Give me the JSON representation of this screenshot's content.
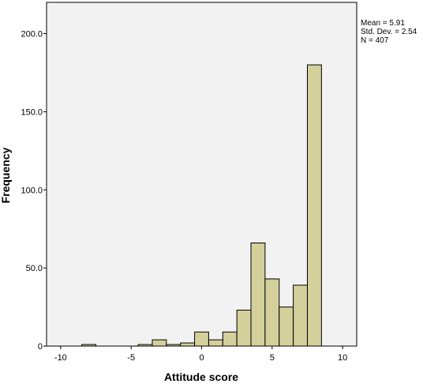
{
  "chart_data": {
    "type": "bar",
    "subtype": "histogram",
    "xlabel": "Attitude score",
    "ylabel": "Frequency",
    "xlim": [
      -11,
      11
    ],
    "ylim": [
      0,
      220
    ],
    "bin_width": 1,
    "x_ticks": [
      -10,
      -5,
      0,
      5,
      10
    ],
    "x_tick_labels": [
      "-10",
      "-5",
      "0",
      "5",
      "10"
    ],
    "y_ticks": [
      0,
      50,
      100,
      150,
      200
    ],
    "y_tick_labels": [
      "0",
      "50.0",
      "100.0",
      "150.0",
      "200.0"
    ],
    "bins": [
      {
        "start": -8.5,
        "end": -7.5,
        "count": 1
      },
      {
        "start": -4.5,
        "end": -3.5,
        "count": 1
      },
      {
        "start": -3.5,
        "end": -2.5,
        "count": 4
      },
      {
        "start": -2.5,
        "end": -1.5,
        "count": 1
      },
      {
        "start": -1.5,
        "end": -0.5,
        "count": 2
      },
      {
        "start": -0.5,
        "end": 0.5,
        "count": 9
      },
      {
        "start": 0.5,
        "end": 1.5,
        "count": 4
      },
      {
        "start": 1.5,
        "end": 2.5,
        "count": 9
      },
      {
        "start": 2.5,
        "end": 3.5,
        "count": 23
      },
      {
        "start": 3.5,
        "end": 4.5,
        "count": 66
      },
      {
        "start": 4.5,
        "end": 5.5,
        "count": 43
      },
      {
        "start": 5.5,
        "end": 6.5,
        "count": 25
      },
      {
        "start": 6.5,
        "end": 7.5,
        "count": 39
      },
      {
        "start": 7.5,
        "end": 8.5,
        "count": 180
      }
    ],
    "stats": {
      "mean": "Mean = 5.91",
      "std_dev": "Std. Dev. = 2.54",
      "n": "N = 407"
    },
    "grid": false,
    "legend": "none",
    "colors": {
      "bar_fill": "#d4d09c",
      "bar_stroke": "#000000",
      "plot_background": "#f2f2f2"
    }
  }
}
